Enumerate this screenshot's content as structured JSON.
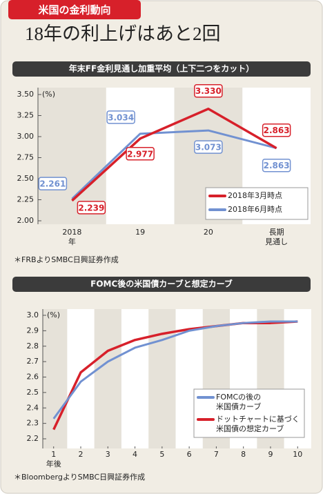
{
  "header": {
    "tag": "米国の金利動向",
    "title": "18年の利上げはあと2回"
  },
  "chart_data": [
    {
      "type": "line",
      "title": "年末FF金利見通し加重平均（上下二つをカット）",
      "y_unit": "(%)",
      "categories": [
        "2018\n年",
        "19",
        "20",
        "長期\n見通し"
      ],
      "series": [
        {
          "name": "2018年3月時点",
          "color": "#d7202a",
          "values": [
            2.239,
            2.977,
            3.33,
            2.863
          ],
          "value_labels": [
            "2.239",
            "2.977",
            "3.330",
            "2.863"
          ]
        },
        {
          "name": "2018年6月時点",
          "color": "#7191d1",
          "values": [
            2.261,
            3.034,
            3.073,
            2.863
          ],
          "value_labels": [
            "2.261",
            "3.034",
            "3.073",
            "2.863"
          ]
        }
      ],
      "ylim": [
        2.0,
        3.5
      ],
      "yticks": [
        {
          "value": 2.0,
          "label": "2.00"
        },
        {
          "value": 2.25,
          "label": "2.25"
        },
        {
          "value": 2.5,
          "label": "2.50"
        },
        {
          "value": 2.75,
          "label": "2.75"
        },
        {
          "value": 3.0,
          "label": "3.00"
        },
        {
          "value": 3.25,
          "label": "3.25"
        },
        {
          "value": 3.5,
          "label": "3.50"
        }
      ],
      "legend": "lower right",
      "source": "＊FRBよりSMBC日興証券作成"
    },
    {
      "type": "line",
      "title": "FOMC後の米国債カーブと想定カーブ",
      "y_unit": "(%)",
      "x_annotation": "年後",
      "x": [
        1,
        2,
        3,
        4,
        5,
        6,
        7,
        8,
        9,
        10
      ],
      "series": [
        {
          "name": "FOMCの後の\n米国債カーブ",
          "color": "#7191d1",
          "values": [
            2.33,
            2.57,
            2.7,
            2.79,
            2.84,
            2.9,
            2.93,
            2.95,
            2.96,
            2.96
          ]
        },
        {
          "name": "ドットチャートに基づく\n米国債の想定カーブ",
          "color": "#d7202a",
          "values": [
            2.26,
            2.63,
            2.77,
            2.84,
            2.88,
            2.91,
            2.93,
            2.95,
            2.95,
            2.96
          ]
        }
      ],
      "xlim": [
        0.6,
        10.35
      ],
      "xticks": [
        1,
        2,
        3,
        4,
        5,
        6,
        7,
        8,
        9,
        10
      ],
      "ylim": [
        2.2,
        3.0
      ],
      "yticks": [
        2.2,
        2.3,
        2.4,
        2.5,
        2.6,
        2.7,
        2.8,
        2.9,
        {
          "value": 3.0,
          "label": "3.0"
        }
      ],
      "legend": "lower right",
      "source": "＊BloombergよりSMBC日興証券作成"
    }
  ]
}
